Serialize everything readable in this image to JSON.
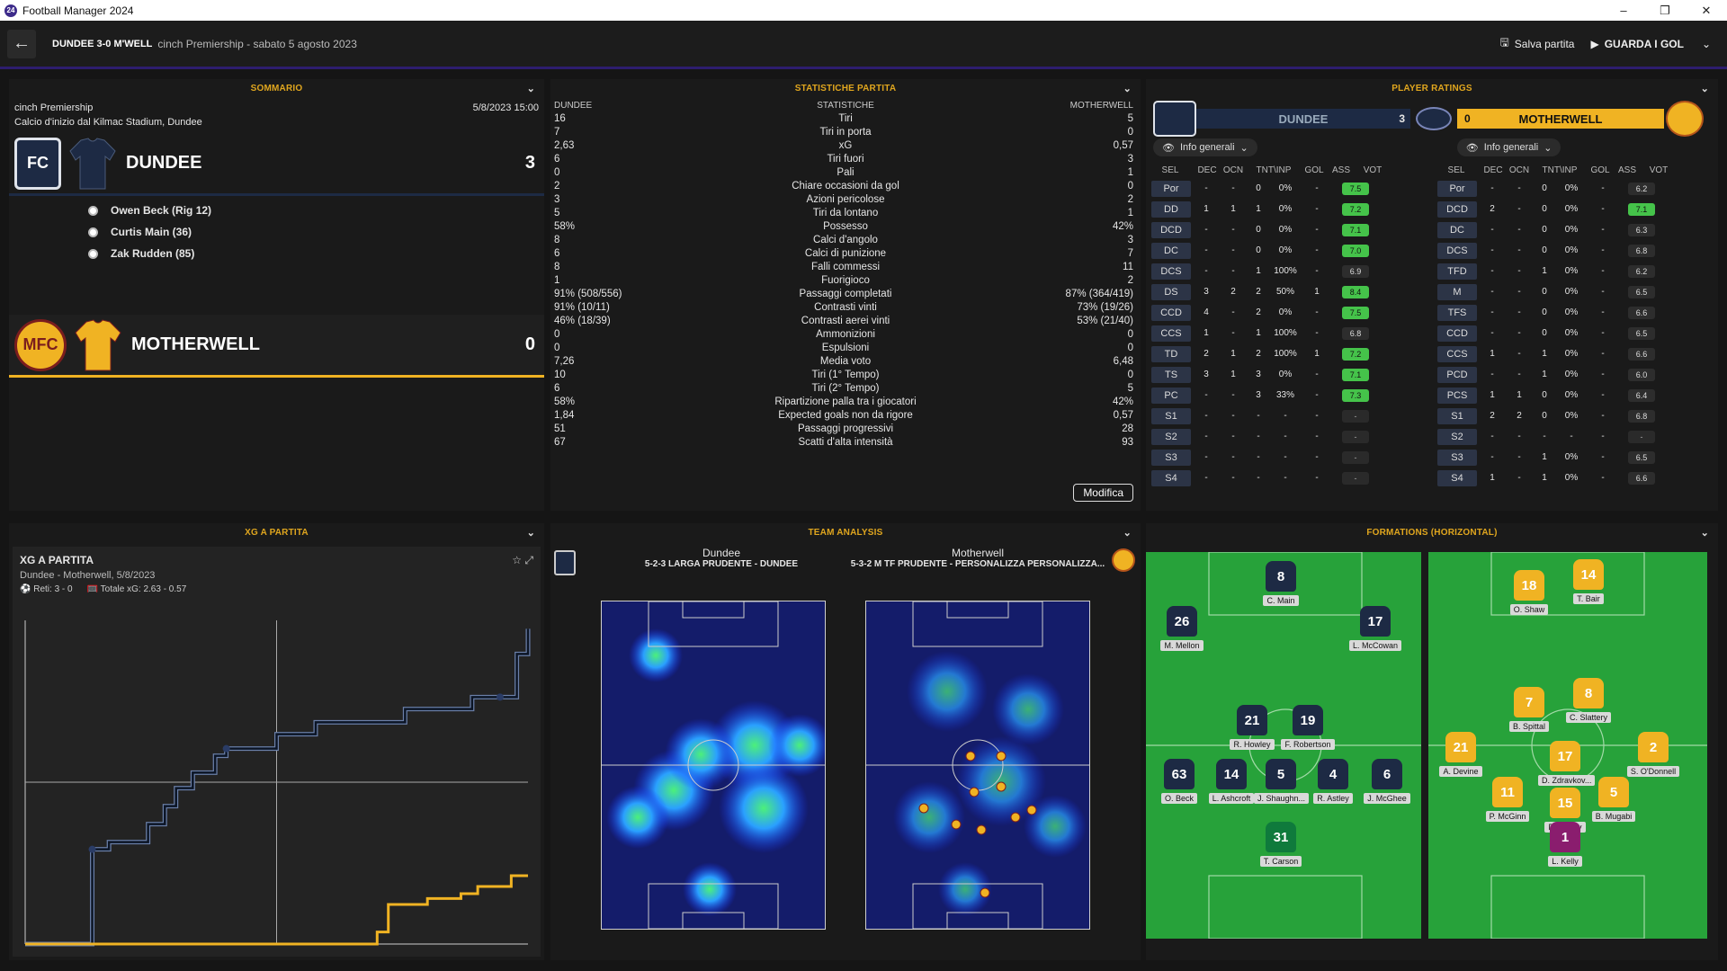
{
  "window": {
    "title": "Football Manager 2024"
  },
  "header": {
    "score": "DUNDEE 3-0 M'WELL",
    "competition": "cinch Premiership - sabato 5 agosto 2023",
    "save": "Salva partita",
    "goals": "GUARDA I GOL"
  },
  "summary": {
    "title": "SOMMARIO",
    "competition": "cinch Premiership",
    "date": "5/8/2023 15:00",
    "venue": "Calcio d'inizio dal Kilmac Stadium, Dundee",
    "home": {
      "name": "DUNDEE",
      "score": "3",
      "crest": "FC"
    },
    "away": {
      "name": "MOTHERWELL",
      "score": "0",
      "crest": "MFC"
    },
    "scorers": [
      "Owen Beck (Rig 12)",
      "Curtis Main (36)",
      "Zak Rudden (85)"
    ]
  },
  "stats": {
    "title": "STATISTICHE PARTITA",
    "home_label": "DUNDEE",
    "mid_label": "STATISTICHE",
    "away_label": "MOTHERWELL",
    "edit": "Modifica",
    "rows": [
      {
        "h": "16",
        "n": "Tiri",
        "a": "5"
      },
      {
        "h": "7",
        "n": "Tiri in porta",
        "a": "0"
      },
      {
        "h": "2,63",
        "n": "xG",
        "a": "0,57"
      },
      {
        "h": "6",
        "n": "Tiri fuori",
        "a": "3"
      },
      {
        "h": "0",
        "n": "Pali",
        "a": "1"
      },
      {
        "h": "2",
        "n": "Chiare occasioni da gol",
        "a": "0"
      },
      {
        "h": "3",
        "n": "Azioni pericolose",
        "a": "2"
      },
      {
        "h": "5",
        "n": "Tiri da lontano",
        "a": "1"
      },
      {
        "h": "58%",
        "n": "Possesso",
        "a": "42%"
      },
      {
        "h": "8",
        "n": "Calci d'angolo",
        "a": "3"
      },
      {
        "h": "6",
        "n": "Calci di punizione",
        "a": "7"
      },
      {
        "h": "8",
        "n": "Falli commessi",
        "a": "11"
      },
      {
        "h": "1",
        "n": "Fuorigioco",
        "a": "2"
      },
      {
        "h": "91% (508/556)",
        "n": "Passaggi completati",
        "a": "87% (364/419)"
      },
      {
        "h": "91% (10/11)",
        "n": "Contrasti vinti",
        "a": "73% (19/26)"
      },
      {
        "h": "46% (18/39)",
        "n": "Contrasti aerei vinti",
        "a": "53% (21/40)"
      },
      {
        "h": "0",
        "n": "Ammonizioni",
        "a": "0"
      },
      {
        "h": "0",
        "n": "Espulsioni",
        "a": "0"
      },
      {
        "h": "7,26",
        "n": "Media voto",
        "a": "6,48"
      },
      {
        "h": "10",
        "n": "Tiri (1° Tempo)",
        "a": "0"
      },
      {
        "h": "6",
        "n": "Tiri (2° Tempo)",
        "a": "5"
      },
      {
        "h": "58%",
        "n": "Ripartizione palla tra i giocatori",
        "a": "42%"
      },
      {
        "h": "1,84",
        "n": "Expected goals non da rigore",
        "a": "0,57"
      },
      {
        "h": "51",
        "n": "Passaggi progressivi",
        "a": "28"
      },
      {
        "h": "67",
        "n": "Scatti d'alta intensità",
        "a": "93"
      }
    ]
  },
  "ratings": {
    "title": "PLAYER RATINGS",
    "home": {
      "name": "DUNDEE",
      "score": "3"
    },
    "away": {
      "name": "MOTHERWELL",
      "score": "0"
    },
    "filter": "Info generali",
    "cols": [
      "SEL",
      "DEC",
      "OCN",
      "TNT\\INP",
      "GOL",
      "ASS",
      "VOT"
    ],
    "home_rows": [
      [
        "Por",
        "-",
        "-",
        "0",
        "0%",
        "-",
        "7.5"
      ],
      [
        "DD",
        "1",
        "1",
        "1",
        "0%",
        "-",
        "7.2"
      ],
      [
        "DCD",
        "-",
        "-",
        "0",
        "0%",
        "-",
        "7.1"
      ],
      [
        "DC",
        "-",
        "-",
        "0",
        "0%",
        "-",
        "7.0"
      ],
      [
        "DCS",
        "-",
        "-",
        "1",
        "100%",
        "-",
        "6.9"
      ],
      [
        "DS",
        "3",
        "2",
        "2",
        "50%",
        "1",
        "8.4"
      ],
      [
        "CCD",
        "4",
        "-",
        "2",
        "0%",
        "-",
        "7.5"
      ],
      [
        "CCS",
        "1",
        "-",
        "1",
        "100%",
        "-",
        "6.8"
      ],
      [
        "TD",
        "2",
        "1",
        "2",
        "100%",
        "1",
        "7.2"
      ],
      [
        "TS",
        "3",
        "1",
        "3",
        "0%",
        "-",
        "7.1"
      ],
      [
        "PC",
        "-",
        "-",
        "3",
        "33%",
        "-",
        "7.3"
      ],
      [
        "S1",
        "-",
        "-",
        "-",
        "-",
        "-",
        "-"
      ],
      [
        "S2",
        "-",
        "-",
        "-",
        "-",
        "-",
        "-"
      ],
      [
        "S3",
        "-",
        "-",
        "-",
        "-",
        "-",
        "-"
      ],
      [
        "S4",
        "-",
        "-",
        "-",
        "-",
        "-",
        "-"
      ]
    ],
    "away_rows": [
      [
        "Por",
        "-",
        "-",
        "0",
        "0%",
        "-",
        "6.2"
      ],
      [
        "DCD",
        "2",
        "-",
        "0",
        "0%",
        "-",
        "7.1"
      ],
      [
        "DC",
        "-",
        "-",
        "0",
        "0%",
        "-",
        "6.3"
      ],
      [
        "DCS",
        "-",
        "-",
        "0",
        "0%",
        "-",
        "6.8"
      ],
      [
        "TFD",
        "-",
        "-",
        "1",
        "0%",
        "-",
        "6.2"
      ],
      [
        "M",
        "-",
        "-",
        "0",
        "0%",
        "-",
        "6.5"
      ],
      [
        "TFS",
        "-",
        "-",
        "0",
        "0%",
        "-",
        "6.6"
      ],
      [
        "CCD",
        "-",
        "-",
        "0",
        "0%",
        "-",
        "6.5"
      ],
      [
        "CCS",
        "1",
        "-",
        "1",
        "0%",
        "-",
        "6.6"
      ],
      [
        "PCD",
        "-",
        "-",
        "1",
        "0%",
        "-",
        "6.0"
      ],
      [
        "PCS",
        "1",
        "1",
        "0",
        "0%",
        "-",
        "6.4"
      ],
      [
        "S1",
        "2",
        "2",
        "0",
        "0%",
        "-",
        "6.8"
      ],
      [
        "S2",
        "-",
        "-",
        "-",
        "-",
        "-",
        "-"
      ],
      [
        "S3",
        "-",
        "-",
        "1",
        "0%",
        "-",
        "6.5"
      ],
      [
        "S4",
        "1",
        "-",
        "1",
        "0%",
        "-",
        "6.6"
      ]
    ]
  },
  "xg": {
    "title": "XG A PARTITA",
    "heading": "XG A PARTITA",
    "sub": "Dundee - Motherwell, 5/8/2023",
    "goals": "Reti: 3 - 0",
    "total": "Totale xG: 2.63 - 0.57",
    "chart_data": {
      "type": "line",
      "title": "XG A PARTITA",
      "series": [
        {
          "name": "Dundee",
          "values": [
            [
              0,
              0
            ],
            [
              12,
              0.79
            ],
            [
              15,
              0.85
            ],
            [
              22,
              1.0
            ],
            [
              25,
              1.15
            ],
            [
              27,
              1.3
            ],
            [
              30,
              1.43
            ],
            [
              34,
              1.57
            ],
            [
              36,
              1.63
            ],
            [
              45,
              1.75
            ],
            [
              52,
              1.85
            ],
            [
              68,
              1.96
            ],
            [
              80,
              2.06
            ],
            [
              88,
              2.42
            ],
            [
              90,
              2.63
            ]
          ]
        },
        {
          "name": "Motherwell",
          "values": [
            [
              0,
              0
            ],
            [
              58,
              0
            ],
            [
              63,
              0.1
            ],
            [
              65,
              0.33
            ],
            [
              72,
              0.38
            ],
            [
              78,
              0.42
            ],
            [
              81,
              0.48
            ],
            [
              87,
              0.57
            ],
            [
              90,
              0.57
            ]
          ]
        }
      ],
      "xlim": [
        0,
        90
      ],
      "ylim": [
        0,
        2.7
      ],
      "goals_home": [
        12,
        36,
        85
      ]
    }
  },
  "analysis": {
    "title": "TEAM ANALYSIS",
    "home": "Dundee",
    "home_form": "5-2-3 LARGA PRUDENTE - DUNDEE",
    "away": "Motherwell",
    "away_form": "5-3-2 M TF PRUDENTE - PERSONALIZZA PERSONALIZZA..."
  },
  "formations": {
    "title": "FORMATIONS (HORIZONTAL)",
    "home": [
      {
        "n": "8",
        "p": "C. Main"
      },
      {
        "n": "26",
        "p": "M. Mellon"
      },
      {
        "n": "17",
        "p": "L. McCowan"
      },
      {
        "n": "21",
        "p": "R. Howley"
      },
      {
        "n": "19",
        "p": "F. Robertson"
      },
      {
        "n": "63",
        "p": "O. Beck"
      },
      {
        "n": "14",
        "p": "L. Ashcroft"
      },
      {
        "n": "5",
        "p": "J. Shaughn..."
      },
      {
        "n": "4",
        "p": "R. Astley"
      },
      {
        "n": "6",
        "p": "J. McGhee"
      },
      {
        "n": "31",
        "p": "T. Carson"
      }
    ],
    "away": [
      {
        "n": "18",
        "p": "O. Shaw"
      },
      {
        "n": "14",
        "p": "T. Bair"
      },
      {
        "n": "7",
        "p": "B. Spittal"
      },
      {
        "n": "8",
        "p": "C. Slattery"
      },
      {
        "n": "21",
        "p": "A. Devine"
      },
      {
        "n": "17",
        "p": "D. Zdravkov..."
      },
      {
        "n": "2",
        "p": "S. O'Donnell"
      },
      {
        "n": "11",
        "p": "P. McGinn"
      },
      {
        "n": "15",
        "p": "D. Casey"
      },
      {
        "n": "5",
        "p": "B. Mugabi"
      },
      {
        "n": "1",
        "p": "L. Kelly"
      }
    ]
  },
  "colors": {
    "accent": "#e0a61e",
    "navy": "#1d2a44",
    "amber": "#f0b323",
    "pitch": "#27a23a"
  }
}
